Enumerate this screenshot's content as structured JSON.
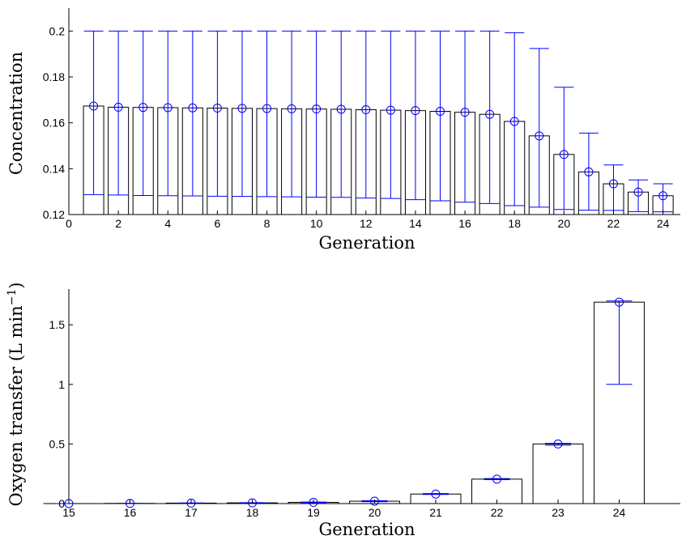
{
  "chart_data": [
    {
      "type": "bar",
      "xlabel": "Generation",
      "ylabel": "Concentration",
      "xlim": [
        0,
        24.7
      ],
      "ylim": [
        0.12,
        0.21
      ],
      "xticks": [
        0,
        2,
        4,
        6,
        8,
        10,
        12,
        14,
        16,
        18,
        20,
        22,
        24
      ],
      "yticks": [
        0.12,
        0.14,
        0.16,
        0.18,
        0.2
      ],
      "ytick_labels": [
        "0.12",
        "0.14",
        "0.16",
        "0.18",
        "0.2"
      ],
      "x": [
        1,
        2,
        3,
        4,
        5,
        6,
        7,
        8,
        9,
        10,
        11,
        12,
        13,
        14,
        15,
        16,
        17,
        18,
        19,
        20,
        21,
        22,
        23,
        24
      ],
      "values": [
        0.1673,
        0.1668,
        0.1667,
        0.1666,
        0.1665,
        0.1664,
        0.1663,
        0.1662,
        0.1661,
        0.166,
        0.1659,
        0.1657,
        0.1655,
        0.1653,
        0.165,
        0.1646,
        0.1637,
        0.1606,
        0.1543,
        0.1462,
        0.1386,
        0.1334,
        0.1298,
        0.1282
      ],
      "upper": [
        0.2,
        0.2,
        0.2,
        0.2,
        0.2,
        0.2,
        0.2,
        0.2,
        0.2,
        0.2,
        0.2,
        0.2,
        0.2,
        0.2,
        0.2,
        0.2,
        0.2,
        0.1993,
        0.1924,
        0.1755,
        0.1555,
        0.1416,
        0.1351,
        0.1334
      ],
      "lower": [
        0.1287,
        0.1285,
        0.1283,
        0.1282,
        0.1281,
        0.128,
        0.1279,
        0.1278,
        0.1277,
        0.1276,
        0.1275,
        0.1272,
        0.127,
        0.1265,
        0.126,
        0.1254,
        0.1248,
        0.1239,
        0.1232,
        0.1222,
        0.1219,
        0.1218,
        0.1213,
        0.1212
      ]
    },
    {
      "type": "bar",
      "xlabel": "Generation",
      "ylabel": "Oxygen transfer (L min",
      "ylabel_superscript": "−1",
      "ylabel_suffix": ")",
      "xlim": [
        15,
        25
      ],
      "ylim": [
        0,
        1.8
      ],
      "categories": [
        "15",
        "16",
        "17",
        "18",
        "19",
        "20",
        "21",
        "22",
        "23",
        "24"
      ],
      "x": [
        15,
        16,
        17,
        18,
        19,
        20,
        21,
        22,
        23,
        24
      ],
      "yticks": [
        0,
        0.5,
        1,
        1.5
      ],
      "ytick_labels": [
        "0",
        "0.5",
        "1",
        "1.5"
      ],
      "values": [
        0.0002,
        0.0015,
        0.004,
        0.006,
        0.01,
        0.02,
        0.08,
        0.205,
        0.5,
        1.69
      ],
      "upper": [
        0.0003,
        0.002,
        0.005,
        0.008,
        0.013,
        0.024,
        0.084,
        0.21,
        0.505,
        1.7
      ],
      "lower": [
        0.0001,
        0.001,
        0.003,
        0.005,
        0.008,
        0.016,
        0.076,
        0.2,
        0.49,
        1.0
      ]
    }
  ]
}
